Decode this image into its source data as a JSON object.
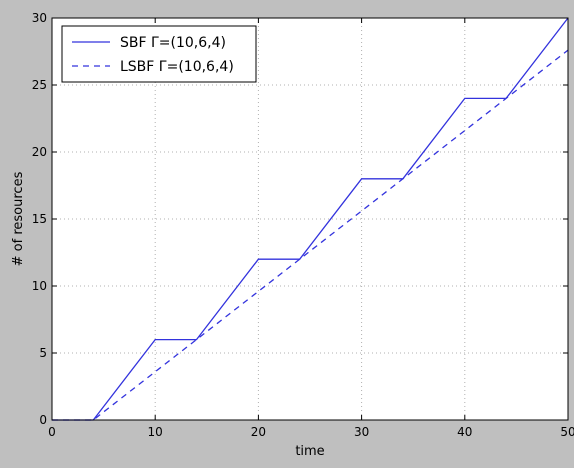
{
  "chart_data": {
    "type": "line",
    "xlabel": "time",
    "ylabel": "# of resources",
    "xlim": [
      0,
      50
    ],
    "ylim": [
      0,
      30
    ],
    "xticks": [
      0,
      10,
      20,
      30,
      40,
      50
    ],
    "yticks": [
      0,
      5,
      10,
      15,
      20,
      25,
      30
    ],
    "grid": true,
    "legend_position": "top-left",
    "series": [
      {
        "name": "SBF Γ=(10,6,4)",
        "style": "solid",
        "color": "#3333dd",
        "x": [
          0,
          4,
          10,
          14,
          20,
          24,
          30,
          34,
          40,
          44,
          50
        ],
        "y": [
          0,
          0,
          6,
          6,
          12,
          12,
          18,
          18,
          24,
          24,
          30
        ]
      },
      {
        "name": "LSBF Γ=(10,6,4)",
        "style": "dashed",
        "color": "#3333dd",
        "x": [
          0,
          4,
          50
        ],
        "y": [
          0,
          0,
          27.6
        ]
      }
    ]
  },
  "colors": {
    "figure_background": "#bfbfbf",
    "plot_background": "#ffffff",
    "grid": "#b0b0b0",
    "series": "#3333dd"
  }
}
